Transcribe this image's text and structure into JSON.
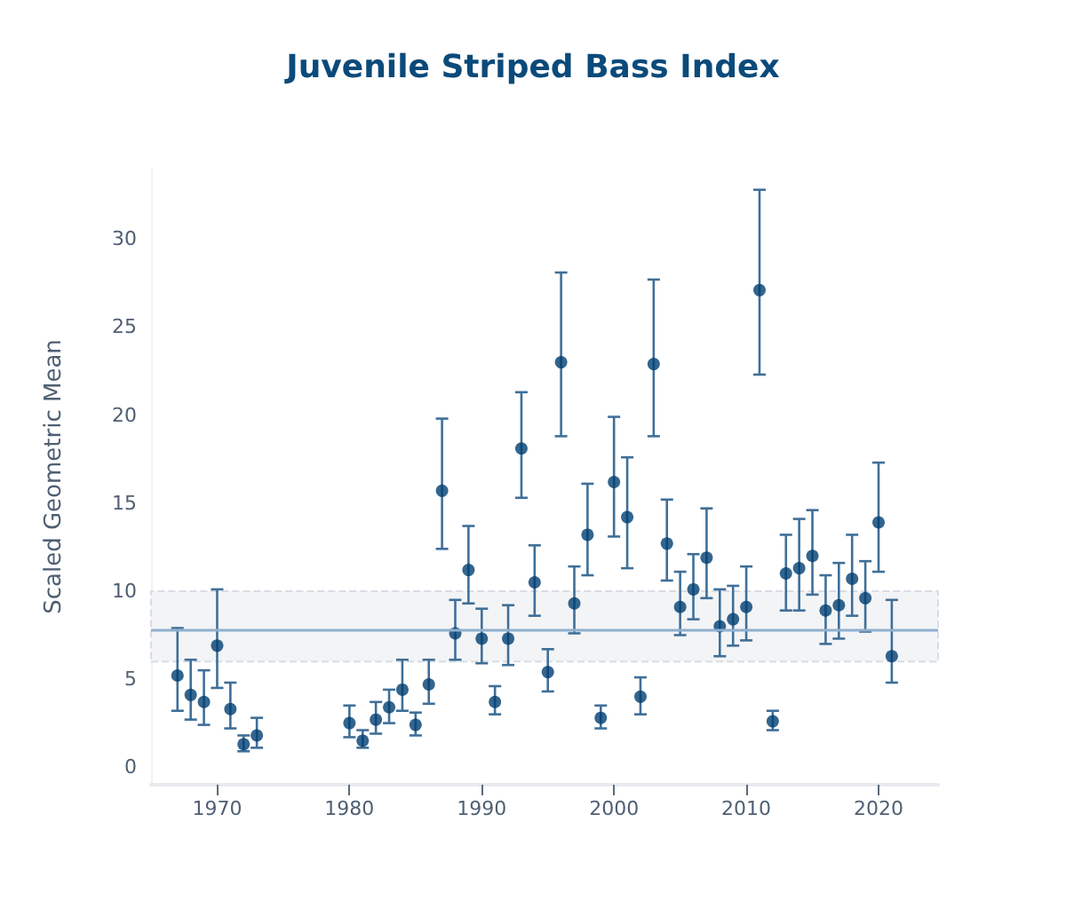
{
  "chart_data": {
    "type": "scatter",
    "title": "Juvenile Striped Bass Index",
    "ylabel": "Scaled Geometric Mean",
    "x": [
      1967,
      1968,
      1969,
      1970,
      1971,
      1972,
      1973,
      1980,
      1981,
      1982,
      1983,
      1984,
      1985,
      1986,
      1987,
      1988,
      1989,
      1990,
      1991,
      1992,
      1993,
      1994,
      1995,
      1996,
      1997,
      1998,
      1999,
      2000,
      2001,
      2002,
      2003,
      2004,
      2005,
      2006,
      2007,
      2008,
      2009,
      2010,
      2011,
      2012,
      2013,
      2014,
      2015,
      2016,
      2017,
      2018,
      2019,
      2020,
      2021
    ],
    "series": [
      {
        "color": "#003f72",
        "values": [
          5.2,
          4.1,
          3.7,
          6.9,
          3.3,
          1.3,
          1.8,
          2.5,
          1.5,
          2.7,
          3.4,
          4.4,
          2.4,
          4.7,
          15.7,
          7.6,
          11.2,
          7.3,
          3.7,
          7.3,
          18.1,
          10.5,
          5.4,
          23.0,
          9.3,
          13.2,
          2.8,
          16.2,
          14.2,
          4.0,
          22.9,
          12.7,
          9.1,
          10.1,
          11.9,
          8.0,
          8.4,
          9.1,
          27.1,
          2.6,
          11.0,
          11.3,
          12.0,
          8.9,
          9.2,
          10.7,
          9.6,
          13.9,
          6.3
        ],
        "errors": [
          [
            3.2,
            7.9
          ],
          [
            2.7,
            6.1
          ],
          [
            2.4,
            5.5
          ],
          [
            4.5,
            10.1
          ],
          [
            2.2,
            4.8
          ],
          [
            0.9,
            1.8
          ],
          [
            1.1,
            2.8
          ],
          [
            1.7,
            3.5
          ],
          [
            1.1,
            2.1
          ],
          [
            1.9,
            3.7
          ],
          [
            2.5,
            4.4
          ],
          [
            3.2,
            6.1
          ],
          [
            1.8,
            3.1
          ],
          [
            3.6,
            6.1
          ],
          [
            12.4,
            19.8
          ],
          [
            6.1,
            9.5
          ],
          [
            9.3,
            13.7
          ],
          [
            5.9,
            9.0
          ],
          [
            3.0,
            4.6
          ],
          [
            5.8,
            9.2
          ],
          [
            15.3,
            21.3
          ],
          [
            8.6,
            12.6
          ],
          [
            4.3,
            6.7
          ],
          [
            18.8,
            28.1
          ],
          [
            7.6,
            11.4
          ],
          [
            10.9,
            16.1
          ],
          [
            2.2,
            3.5
          ],
          [
            13.1,
            19.9
          ],
          [
            11.3,
            17.6
          ],
          [
            3.0,
            5.1
          ],
          [
            18.8,
            27.7
          ],
          [
            10.6,
            15.2
          ],
          [
            7.5,
            11.1
          ],
          [
            8.4,
            12.1
          ],
          [
            9.6,
            14.7
          ],
          [
            6.3,
            10.1
          ],
          [
            6.9,
            10.3
          ],
          [
            7.2,
            11.4
          ],
          [
            22.3,
            32.8
          ],
          [
            2.1,
            3.2
          ],
          [
            8.9,
            13.2
          ],
          [
            8.9,
            14.1
          ],
          [
            9.8,
            14.6
          ],
          [
            7.0,
            10.9
          ],
          [
            7.3,
            11.6
          ],
          [
            8.6,
            13.2
          ],
          [
            7.7,
            11.7
          ],
          [
            11.1,
            17.3
          ],
          [
            4.8,
            9.5
          ]
        ]
      }
    ],
    "xlim": [
      1965,
      2024.5
    ],
    "xticks": [
      1970,
      1980,
      1990,
      2000,
      2010,
      2020
    ],
    "ylim": [
      -1,
      34
    ],
    "yticks": [
      0,
      5,
      10,
      15,
      20,
      25,
      30
    ],
    "ref_lines": [
      {
        "axis": "y",
        "value": 7.8,
        "color": "#8fb0cf",
        "line_style": "solid"
      }
    ],
    "bands": [
      {
        "axis": "y",
        "from": 6.0,
        "to": 10.0,
        "color": "#f3f4f6"
      }
    ],
    "marker": "circle",
    "grid": false
  }
}
